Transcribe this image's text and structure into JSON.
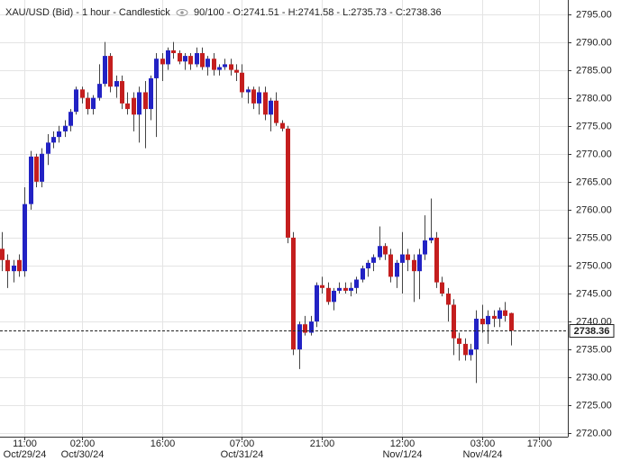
{
  "chart_data": {
    "type": "candlestick",
    "title": "XAU/USD (Bid) - 1 hour - Candlestick",
    "subtitle": "90/100 - O:2741.51 - H:2741.58 - L:2735.73 - C:2738.36",
    "up_color": "#2222c4",
    "down_color": "#c41e1e",
    "open": [
      2753,
      2751,
      2749,
      2751,
      2749,
      2761,
      2769.5,
      2765,
      2770,
      2772,
      2773,
      2774,
      2775,
      2777.5,
      2781.5,
      2780,
      2778,
      2780,
      2782.5,
      2787.5,
      2782,
      2783,
      2779,
      2780,
      2777,
      2781,
      2778,
      2783.5,
      2787,
      2786,
      2788.5,
      2788,
      2786.5,
      2787.5,
      2786,
      2788,
      2785.5,
      2787,
      2785,
      2785.5,
      2786,
      2785,
      2784.5,
      2781,
      2781.5,
      2779,
      2781,
      2777,
      2779.5,
      2775.5,
      2774.5,
      2755,
      2735,
      2739.5,
      2738,
      2740,
      2746.5,
      2746,
      2743.5,
      2745.5,
      2746,
      2745.5,
      2746,
      2747.5,
      2749.5,
      2750.5,
      2751.5,
      2753.5,
      2752,
      2748,
      2750.5,
      2752,
      2751,
      2749,
      2752,
      2754.5,
      2755,
      2747,
      2745,
      2743,
      2737,
      2736,
      2734,
      2735,
      2740.5,
      2739.5,
      2741,
      2740.5,
      2742,
      2741.51
    ],
    "high": [
      2756,
      2752,
      2751,
      2752,
      2764,
      2770.5,
      2770,
      2771,
      2773.5,
      2774,
      2775,
      2776,
      2778,
      2782,
      2782,
      2781,
      2780.5,
      2786,
      2790,
      2788,
      2784,
      2784,
      2781,
      2781,
      2782,
      2783,
      2784,
      2788,
      2788,
      2789,
      2790,
      2788.5,
      2788,
      2788,
      2789,
      2789,
      2787.5,
      2788,
      2786,
      2787,
      2787,
      2786,
      2786,
      2782,
      2782,
      2782,
      2782,
      2780,
      2781,
      2776,
      2775,
      2756,
      2740,
      2741,
      2741,
      2747,
      2748,
      2747,
      2746,
      2747,
      2747,
      2747,
      2748,
      2750,
      2751,
      2752,
      2757,
      2754,
      2753,
      2751,
      2756,
      2753,
      2752,
      2753,
      2759,
      2762,
      2756,
      2748,
      2746,
      2744,
      2738,
      2737,
      2736,
      2742,
      2743,
      2742,
      2742,
      2742.5,
      2743.5,
      2741.58
    ],
    "low": [
      2749,
      2746,
      2747,
      2748,
      2748,
      2760,
      2764,
      2764,
      2768,
      2771,
      2772,
      2773,
      2774,
      2777,
      2779,
      2777,
      2777,
      2779.5,
      2782,
      2781,
      2780,
      2778,
      2777,
      2774,
      2772,
      2771,
      2776,
      2773,
      2783,
      2785,
      2787,
      2786,
      2785,
      2785,
      2785.5,
      2785,
      2784,
      2784,
      2784,
      2785,
      2784,
      2783,
      2780,
      2779,
      2778,
      2777,
      2776,
      2774,
      2775,
      2774,
      2754,
      2734,
      2731.5,
      2737.5,
      2737.5,
      2739,
      2745,
      2743,
      2742,
      2745,
      2745,
      2744.5,
      2745,
      2747,
      2748,
      2749,
      2751,
      2751,
      2747,
      2746,
      2745,
      2749,
      2743.5,
      2744,
      2751,
      2754,
      2746,
      2744.5,
      2740,
      2734,
      2733,
      2733,
      2733,
      2729,
      2738,
      2736,
      2739,
      2739,
      2740,
      2735.73
    ],
    "close": [
      2751,
      2749,
      2750,
      2749,
      2761,
      2769.5,
      2765,
      2770,
      2772,
      2773,
      2774,
      2775,
      2777.5,
      2781.5,
      2780,
      2778,
      2780,
      2782.5,
      2787.5,
      2782,
      2783,
      2779,
      2778,
      2777,
      2781,
      2778,
      2783.5,
      2787,
      2786,
      2788.5,
      2788,
      2786.5,
      2787.5,
      2786,
      2788,
      2785.5,
      2787,
      2785,
      2785.5,
      2786,
      2785,
      2784.5,
      2781,
      2781.5,
      2779,
      2781,
      2777,
      2779.5,
      2775.5,
      2774.5,
      2755,
      2735,
      2739.5,
      2738,
      2740,
      2746.5,
      2746,
      2743.5,
      2745.5,
      2746,
      2745.5,
      2746,
      2747.5,
      2749.5,
      2750.5,
      2751.5,
      2753.5,
      2752,
      2748,
      2750.5,
      2752,
      2751,
      2749,
      2752,
      2754.5,
      2755,
      2747,
      2745,
      2743,
      2737,
      2736,
      2734,
      2735,
      2740.5,
      2739.5,
      2741,
      2740.5,
      2742,
      2741,
      2738.36
    ],
    "xlim": [
      -0.3,
      99
    ],
    "ylim": [
      2719.4,
      2797.5
    ],
    "xticks": [
      {
        "value": 4,
        "label": "11:00",
        "date": "Oct/29/24"
      },
      {
        "value": 14,
        "label": "02:00",
        "date": "Oct/30/24"
      },
      {
        "value": 28,
        "label": "16:00"
      },
      {
        "value": 42,
        "label": "07:00",
        "date": "Oct/31/24"
      },
      {
        "value": 56,
        "label": "21:00"
      },
      {
        "value": 70,
        "label": "12:00",
        "date": "Nov/1/24"
      },
      {
        "value": 84,
        "label": "03:00",
        "date": "Nov/4/24"
      },
      {
        "value": 94,
        "label": "17:00"
      }
    ],
    "yticks": [
      {
        "value": 2720,
        "label": "2720.00"
      },
      {
        "value": 2725,
        "label": "2725.00"
      },
      {
        "value": 2730,
        "label": "2730.00"
      },
      {
        "value": 2735,
        "label": "2735.00"
      },
      {
        "value": 2740,
        "label": "2740.00"
      },
      {
        "value": 2745,
        "label": "2745.00"
      },
      {
        "value": 2750,
        "label": "2750.00"
      },
      {
        "value": 2755,
        "label": "2755.00"
      },
      {
        "value": 2760,
        "label": "2760.00"
      },
      {
        "value": 2765,
        "label": "2765.00"
      },
      {
        "value": 2770,
        "label": "2770.00"
      },
      {
        "value": 2775,
        "label": "2775.00"
      },
      {
        "value": 2780,
        "label": "2780.00"
      },
      {
        "value": 2785,
        "label": "2785.00"
      },
      {
        "value": 2790,
        "label": "2790.00"
      },
      {
        "value": 2795,
        "label": "2795.00"
      }
    ],
    "grid": true
  }
}
